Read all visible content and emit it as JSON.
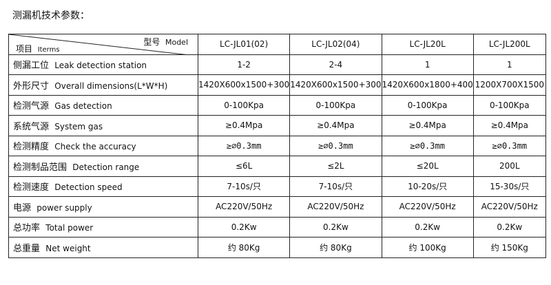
{
  "title": "测漏机技术参数：",
  "header": {
    "model_zh": "型号",
    "model_en": "Model",
    "items_zh": "项目",
    "items_en": "Iterms",
    "models": [
      "LC-JL01(02)",
      "LC-JL02(04)",
      "LC-JL20L",
      "LC-JL200L"
    ]
  },
  "rows": [
    {
      "zh": "侧漏工位",
      "en": "Leak detection station",
      "values": [
        "1-2",
        "2-4",
        "1",
        "1"
      ]
    },
    {
      "zh": "外形尺寸",
      "en": "Overall dimensions(L*W*H)",
      "values": [
        "1420X600x1500+300",
        "1420X600x1500+300",
        "1420X600x1800+400",
        "1200X700X1500"
      ]
    },
    {
      "zh": "检测气源",
      "en": "Gas detection",
      "values": [
        "0-100Kpa",
        "0-100Kpa",
        "0-100Kpa",
        "0-100Kpa"
      ]
    },
    {
      "zh": "系统气源",
      "en": "System gas",
      "values": [
        "≥0.4Mpa",
        "≥0.4Mpa",
        "≥0.4Mpa",
        "≥0.4Mpa"
      ]
    },
    {
      "zh": "检测精度",
      "en": "Check the accuracy",
      "values": [
        "≥⌀0.3mm",
        "≥⌀0.3mm",
        "≥⌀0.3mm",
        "≥⌀0.3mm"
      ]
    },
    {
      "zh": "检测制品范围",
      "en": "Detection range",
      "values": [
        "≤6L",
        "≤2L",
        "≤20L",
        "200L"
      ]
    },
    {
      "zh": "检测速度",
      "en": "Detection speed",
      "values": [
        "7-10s/只",
        "7-10s/只",
        "10-20s/只",
        "15-30s/只"
      ]
    },
    {
      "zh": "电源",
      "en": "power supply",
      "values": [
        "AC220V/50Hz",
        "AC220V/50Hz",
        "AC220V/50Hz",
        "AC220V/50Hz"
      ]
    },
    {
      "zh": "总功率",
      "en": "Total power",
      "values": [
        "0.2Kw",
        "0.2Kw",
        "0.2Kw",
        "0.2Kw"
      ]
    },
    {
      "zh": "总重量",
      "en": "Net weight",
      "values": [
        "约 80Kg",
        "约 80Kg",
        "约 100Kg",
        "约 150Kg"
      ]
    }
  ]
}
